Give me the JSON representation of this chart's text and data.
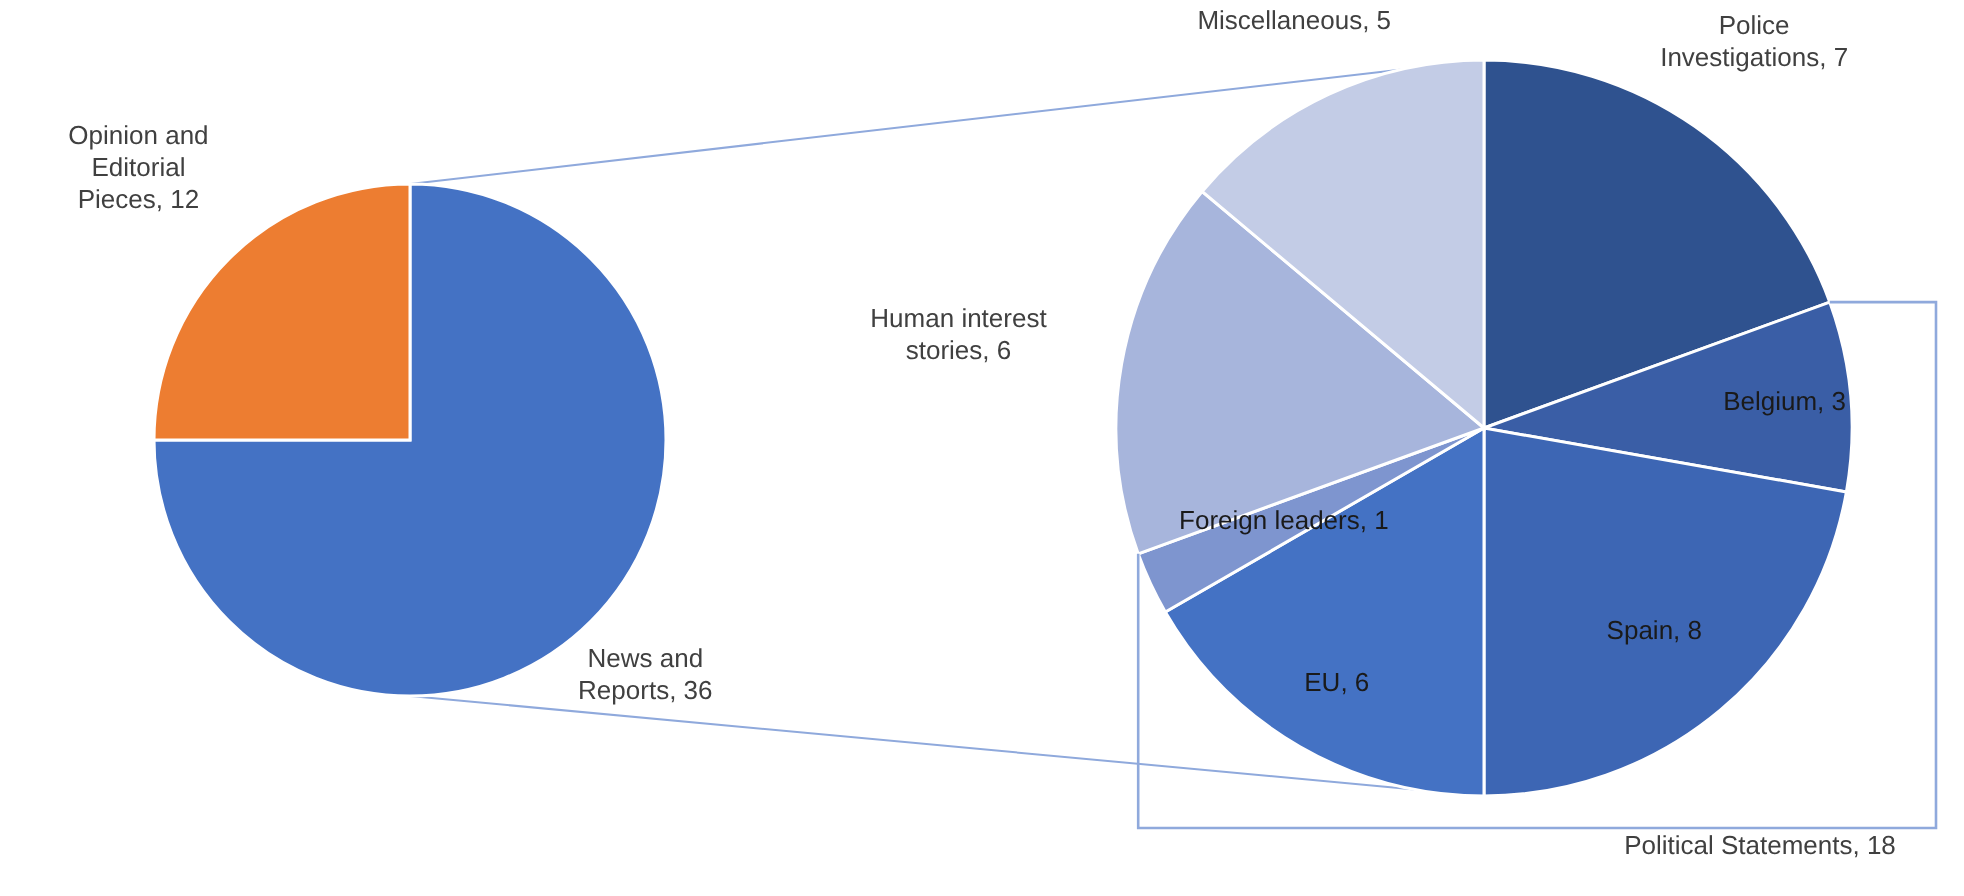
{
  "chart_data": [
    {
      "type": "pie",
      "categories": [
        "News and Reports",
        "Opinion and Editorial Pieces"
      ],
      "values": [
        36,
        12
      ],
      "colors": [
        "#4472c4",
        "#ed7d31"
      ],
      "value_labels": [
        ", 36",
        ", 12"
      ]
    },
    {
      "type": "pie",
      "categories": [
        "Police Investigations",
        "Belgium",
        "Spain",
        "EU",
        "Foreign leaders",
        "Human interest stories",
        "Miscellaneous"
      ],
      "values": [
        7,
        3,
        8,
        6,
        1,
        6,
        5
      ],
      "colors": [
        "#2f528f",
        "#3a5ea6",
        "#3d66b4",
        "#4472c4",
        "#7e95cf",
        "#a7b5dc",
        "#c3cce6"
      ],
      "value_labels": [
        ", 7",
        ", 3",
        ", 8",
        ", 6",
        ", 1",
        ", 6",
        ", 5"
      ],
      "annotations": [
        "Political Statements, 18"
      ]
    }
  ]
}
